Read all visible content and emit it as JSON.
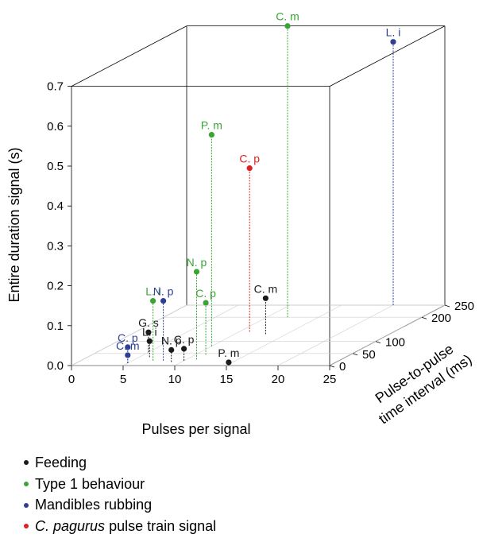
{
  "chart_data": {
    "type": "scatter3d",
    "xlabel": "Pulses per signal",
    "ylabel": "Entire duration signal (s)",
    "zlabel": [
      "Pulse-to-pulse",
      "time interval (ms)"
    ],
    "xlim": [
      0,
      25
    ],
    "ylim": [
      0,
      0.7
    ],
    "zlim": [
      0,
      250
    ],
    "x_ticks": [
      "0",
      "5",
      "10",
      "15",
      "20",
      "25"
    ],
    "y_ticks": [
      "0.0",
      "0.1",
      "0.2",
      "0.3",
      "0.4",
      "0.5",
      "0.6",
      "0.7"
    ],
    "z_ticks": [
      "0",
      "50",
      "100",
      "200",
      "250"
    ],
    "grid": true,
    "series": [
      {
        "name": "Feeding",
        "color": "#1a1a1a",
        "points": [
          {
            "label": "G. s",
            "x": 5,
            "y": 0.05,
            "z": 55
          },
          {
            "label": "L. i",
            "x": 6,
            "y": 0.04,
            "z": 35
          },
          {
            "label": "N. p",
            "x": 9,
            "y": 0.03,
            "z": 15
          },
          {
            "label": "C. p",
            "x": 10,
            "y": 0.03,
            "z": 20
          },
          {
            "label": "C. m",
            "x": 13,
            "y": 0.09,
            "z": 130
          },
          {
            "label": "P. m",
            "x": 15,
            "y": 0.005,
            "z": 5
          }
        ]
      },
      {
        "name": "Type 1 behaviour",
        "color": "#3aa535",
        "points": [
          {
            "label": "L. i",
            "x": 7,
            "y": 0.15,
            "z": 20
          },
          {
            "label": "N. p",
            "x": 11,
            "y": 0.22,
            "z": 25
          },
          {
            "label": "C. p",
            "x": 11,
            "y": 0.13,
            "z": 45
          },
          {
            "label": "P. m",
            "x": 10,
            "y": 0.53,
            "z": 80
          },
          {
            "label": "C. m",
            "x": 12,
            "y": 0.73,
            "z": 200
          }
        ]
      },
      {
        "name": "Mandibles rubbing",
        "color": "#2f3f94",
        "points": [
          {
            "label": "C. p",
            "x": 5,
            "y": 0.04,
            "z": 10
          },
          {
            "label": "C. m",
            "x": 5,
            "y": 0.02,
            "z": 10
          },
          {
            "label": "N. p",
            "x": 8,
            "y": 0.15,
            "z": 20
          },
          {
            "label": "L. i",
            "x": 20,
            "y": 0.66,
            "z": 250
          }
        ]
      },
      {
        "name": "C. pagurus pulse train signal",
        "name_italic": "C. pagurus",
        "name_rest": " pulse train signal",
        "color": "#e02020",
        "points": [
          {
            "label": "C. p",
            "x": 11,
            "y": 0.41,
            "z": 140
          }
        ]
      }
    ]
  }
}
